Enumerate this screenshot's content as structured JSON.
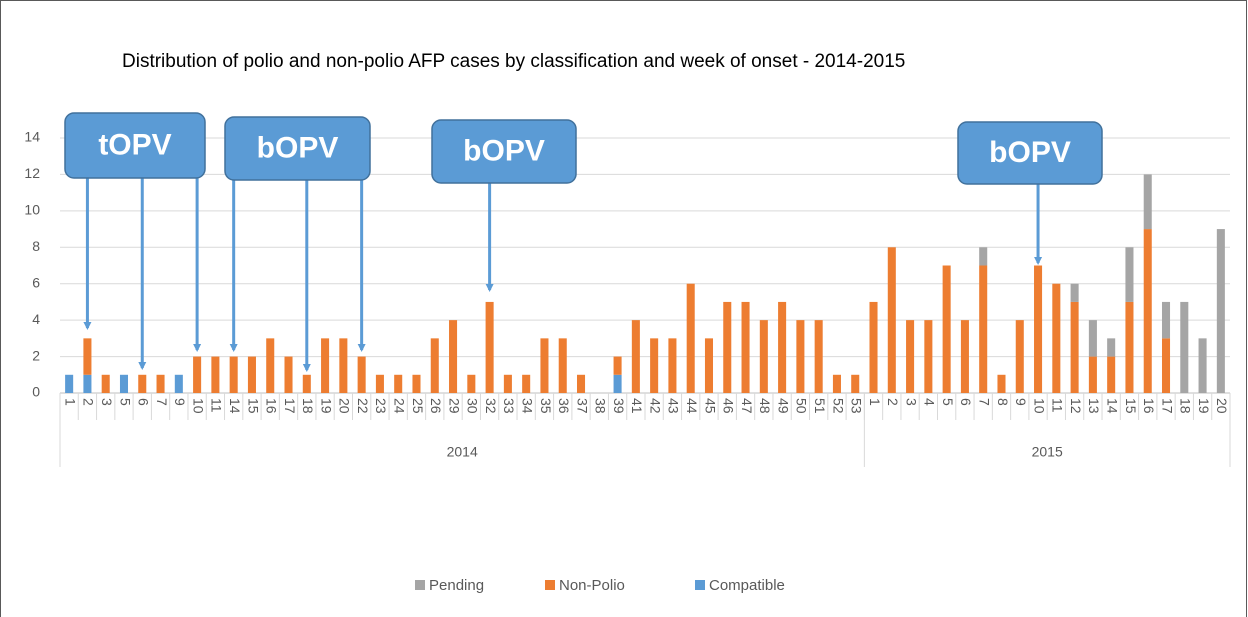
{
  "chart_data": {
    "type": "bar",
    "stacked": true,
    "title": "Distribution of polio and non-polio AFP cases by classification and week of onset - 2014-2015",
    "groups": [
      {
        "name": "2014",
        "categories": [
          "1",
          "2",
          "3",
          "5",
          "6",
          "7",
          "9",
          "10",
          "11",
          "14",
          "15",
          "16",
          "17",
          "18",
          "19",
          "20",
          "22",
          "23",
          "24",
          "25",
          "26",
          "29",
          "30",
          "32",
          "33",
          "34",
          "35",
          "36",
          "37",
          "38",
          "39",
          "41",
          "42",
          "43",
          "44",
          "45",
          "46",
          "47",
          "48",
          "49",
          "50",
          "51",
          "52",
          "53"
        ]
      },
      {
        "name": "2015",
        "categories": [
          "1",
          "2",
          "3",
          "4",
          "5",
          "6",
          "7",
          "8",
          "9",
          "10",
          "11",
          "12",
          "13",
          "14",
          "15",
          "16",
          "17",
          "18",
          "19",
          "20"
        ]
      }
    ],
    "series": [
      {
        "name": "Pending",
        "color": "#a5a5a5",
        "values": [
          0,
          0,
          0,
          0,
          0,
          0,
          0,
          0,
          0,
          0,
          0,
          0,
          0,
          0,
          0,
          0,
          0,
          0,
          0,
          0,
          0,
          0,
          0,
          0,
          0,
          0,
          0,
          0,
          0,
          0,
          0,
          0,
          0,
          0,
          0,
          0,
          0,
          0,
          0,
          0,
          0,
          0,
          0,
          0,
          0,
          0,
          0,
          0,
          0,
          0,
          1,
          0,
          0,
          0,
          0,
          1,
          2,
          1,
          3,
          3,
          2,
          5,
          3,
          9
        ]
      },
      {
        "name": "Non-Polio",
        "color": "#ed7d31",
        "values": [
          0,
          2,
          1,
          0,
          1,
          1,
          0,
          2,
          2,
          2,
          2,
          3,
          2,
          1,
          3,
          3,
          2,
          1,
          1,
          1,
          3,
          4,
          1,
          5,
          1,
          1,
          3,
          3,
          1,
          0,
          1,
          4,
          3,
          3,
          6,
          3,
          5,
          5,
          4,
          5,
          4,
          4,
          1,
          1,
          5,
          8,
          4,
          4,
          7,
          4,
          7,
          1,
          4,
          7,
          6,
          5,
          2,
          2,
          5,
          9,
          3,
          0,
          0,
          0
        ]
      },
      {
        "name": "Compatible",
        "color": "#5b9bd5",
        "values": [
          1,
          1,
          0,
          1,
          0,
          0,
          1,
          0,
          0,
          0,
          0,
          0,
          0,
          0,
          0,
          0,
          0,
          0,
          0,
          0,
          0,
          0,
          0,
          0,
          0,
          0,
          0,
          0,
          0,
          0,
          1,
          0,
          0,
          0,
          0,
          0,
          0,
          0,
          0,
          0,
          0,
          0,
          0,
          0,
          0,
          0,
          0,
          0,
          0,
          0,
          0,
          0,
          0,
          0,
          0,
          0,
          0,
          0,
          0,
          0,
          0,
          0,
          0,
          0
        ]
      }
    ],
    "annotations": [
      "tOPV",
      "bOPV",
      "bOPV",
      "bOPV"
    ],
    "ylim": [
      0,
      14
    ],
    "yticks": [
      0,
      2,
      4,
      6,
      8,
      10,
      12,
      14
    ],
    "grid": true,
    "legend": "bottom"
  }
}
